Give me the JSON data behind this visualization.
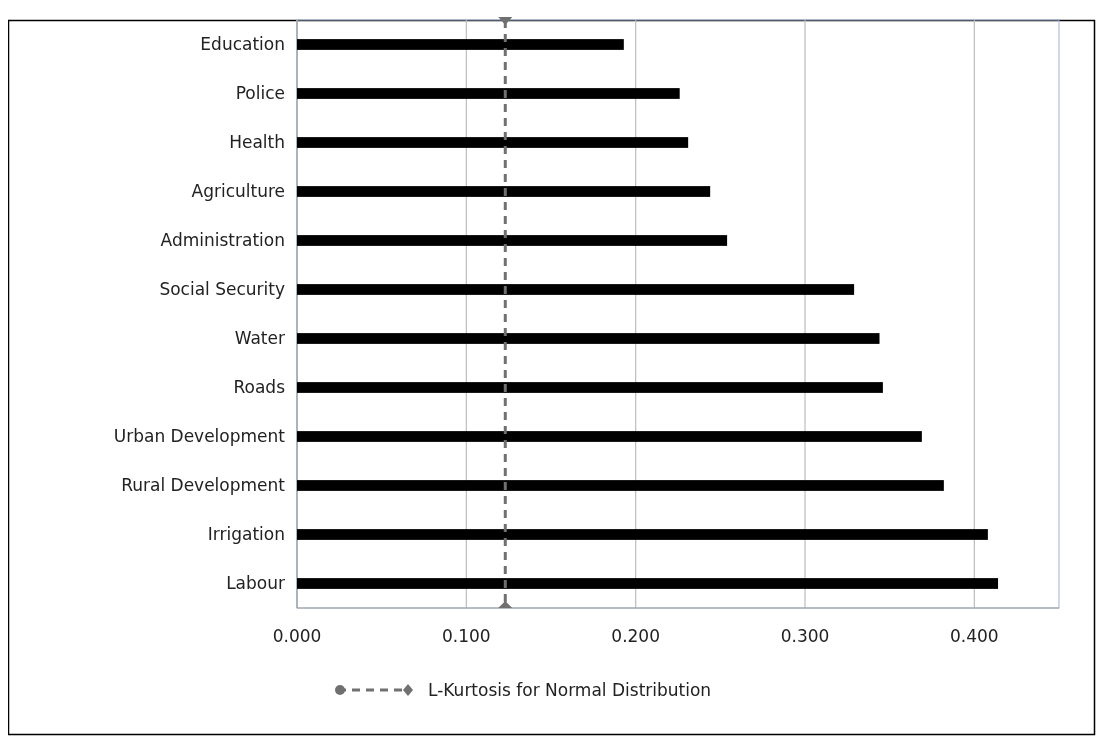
{
  "chart_data": {
    "type": "bar",
    "orientation": "horizontal",
    "categories": [
      "Education",
      "Police",
      "Health",
      "Agriculture",
      "Administration",
      "Social Security",
      "Water",
      "Roads",
      "Urban Development",
      "Rural Development",
      "Irrigation",
      "Labour"
    ],
    "values": [
      0.193,
      0.226,
      0.231,
      0.244,
      0.254,
      0.329,
      0.344,
      0.346,
      0.369,
      0.382,
      0.408,
      0.414
    ],
    "color": "#000000",
    "xlim": [
      0,
      0.45
    ],
    "xticks": [
      {
        "value": 0,
        "label": "0.000"
      },
      {
        "value": 0.1,
        "label": "0.100"
      },
      {
        "value": 0.2,
        "label": "0.200"
      },
      {
        "value": 0.3,
        "label": "0.300"
      },
      {
        "value": 0.4,
        "label": "0.400"
      }
    ],
    "grid": "x",
    "ref_lines": [
      {
        "axis": "x",
        "value": 0.123,
        "label": "L-Kurtosis for Normal Distribution",
        "color": "#707070",
        "line_style": "dashed"
      }
    ],
    "legend": "bottom"
  }
}
